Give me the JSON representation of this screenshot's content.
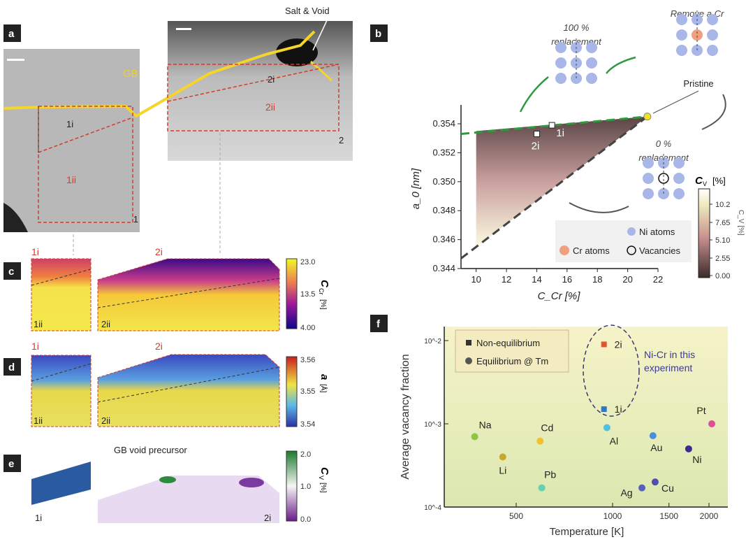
{
  "panels": {
    "a": "a",
    "b": "b",
    "c": "c",
    "d": "d",
    "e": "e",
    "f": "f"
  },
  "panel_a": {
    "salt_void": "Salt & Void",
    "gb": "GB",
    "r1i": "1i",
    "r1ii": "1ii",
    "r1": "1",
    "r2i": "2i",
    "r2ii": "2ii",
    "r2": "2"
  },
  "panel_b": {
    "full_repl": [
      "100 %",
      "replacement"
    ],
    "remove": "Remove a Cr",
    "pristine": "Pristine",
    "zero_repl": [
      "0 %",
      "replacement"
    ],
    "legend": {
      "ni": "Ni atoms",
      "cr": "Cr atoms",
      "vac": "Vacancies"
    },
    "colorbar": {
      "label": "C",
      "sub": "V",
      "unit": "[%]",
      "ticks": [
        "10.2",
        "7.65",
        "5.10",
        "2.55",
        "0.00"
      ]
    }
  },
  "panel_c": {
    "l1i": "1i",
    "l1ii": "1ii",
    "l2i": "2i",
    "l2ii": "2ii",
    "cb_label": "C",
    "cb_sub": "Cr",
    "cb_unit": "[%]",
    "ticks": [
      "23.0",
      "13.5",
      "4.00"
    ]
  },
  "panel_d": {
    "l1i": "1i",
    "l1ii": "1ii",
    "l2i": "2i",
    "l2ii": "2ii",
    "cb_label": "a",
    "cb_unit": "[Å]",
    "ticks": [
      "3.56",
      "3.55",
      "3.54"
    ]
  },
  "panel_e": {
    "title": "GB void precursor",
    "l1i": "1i",
    "l2i": "2i",
    "cb_label": "C",
    "cb_sub": "V",
    "cb_unit": "[%]",
    "ticks": [
      "2.0",
      "1.0",
      "0.0"
    ]
  },
  "chart_data": [
    {
      "type": "line",
      "panel": "b",
      "xlabel": "C_Cr [%]",
      "ylabel": "a_0 [nm]",
      "xlim": [
        9,
        22
      ],
      "ylim": [
        0.344,
        0.355
      ],
      "xticks": [
        10,
        12,
        14,
        16,
        18,
        20,
        22
      ],
      "yticks": [
        0.344,
        0.346,
        0.348,
        0.35,
        0.352,
        0.354
      ],
      "series": [
        {
          "name": "100 % replacement",
          "style": "dashed",
          "color": "#2e9a3e",
          "x": [
            9,
            21.3
          ],
          "y": [
            0.3533,
            0.3545
          ]
        },
        {
          "name": "0 % replacement",
          "style": "dashed",
          "color": "#444444",
          "x": [
            9,
            21.3
          ],
          "y": [
            0.3447,
            0.3545
          ]
        }
      ],
      "points": [
        {
          "label": "1i",
          "x": 15,
          "y": 0.3539
        },
        {
          "label": "2i",
          "x": 14,
          "y": 0.3533
        },
        {
          "label": "Pristine",
          "x": 21.3,
          "y": 0.3545,
          "color": "#f5e12a"
        }
      ],
      "shaded_region": {
        "x": [
          10,
          21.3,
          10
        ],
        "y": [
          0.3535,
          0.3545,
          0.3455
        ],
        "colorbar": "C_V [%]",
        "range": [
          0,
          12
        ]
      }
    },
    {
      "type": "scatter",
      "panel": "f",
      "xlabel": "Temperature [K]",
      "ylabel": "Average vacancy fraction",
      "xscale": "log",
      "yscale": "log",
      "xlim": [
        300,
        2100
      ],
      "ylim": [
        0.0001,
        0.012
      ],
      "xticks": [
        500,
        1000,
        1500,
        2000
      ],
      "yticks": [
        {
          "v": 0.01,
          "l": "10^-2"
        },
        {
          "v": 0.001,
          "l": "10^-3"
        },
        {
          "v": 0.0001,
          "l": "10^-4"
        }
      ],
      "legend": {
        "position": "top-left",
        "items": [
          "Non-equilibrium",
          "Equilibrium @ Tm"
        ]
      },
      "annotation": [
        "Ni-Cr in this",
        "experiment"
      ],
      "points": [
        {
          "label": "2i",
          "x": 940,
          "y": 0.009,
          "marker": "square",
          "color": "#e0562a"
        },
        {
          "label": "1i",
          "x": 940,
          "y": 0.0015,
          "marker": "square",
          "color": "#2e78c8"
        },
        {
          "label": "Na",
          "x": 371,
          "y": 0.0007,
          "color": "#8dc63f"
        },
        {
          "label": "Li",
          "x": 454,
          "y": 0.0004,
          "color": "#c8a82a"
        },
        {
          "label": "Cd",
          "x": 594,
          "y": 0.00062,
          "color": "#f2c12e"
        },
        {
          "label": "Pb",
          "x": 601,
          "y": 0.00017,
          "color": "#5fd3b3"
        },
        {
          "label": "Al",
          "x": 960,
          "y": 0.0009,
          "color": "#4fc1e0"
        },
        {
          "label": "Ag",
          "x": 1235,
          "y": 0.00017,
          "color": "#5560c0"
        },
        {
          "label": "Au",
          "x": 1337,
          "y": 0.00072,
          "color": "#4a90d9"
        },
        {
          "label": "Cu",
          "x": 1358,
          "y": 0.0002,
          "color": "#4f4fb0"
        },
        {
          "label": "Ni",
          "x": 1728,
          "y": 0.0005,
          "color": "#3a2d8f"
        },
        {
          "label": "Pt",
          "x": 2041,
          "y": 0.001,
          "color": "#e0509a"
        }
      ]
    }
  ]
}
